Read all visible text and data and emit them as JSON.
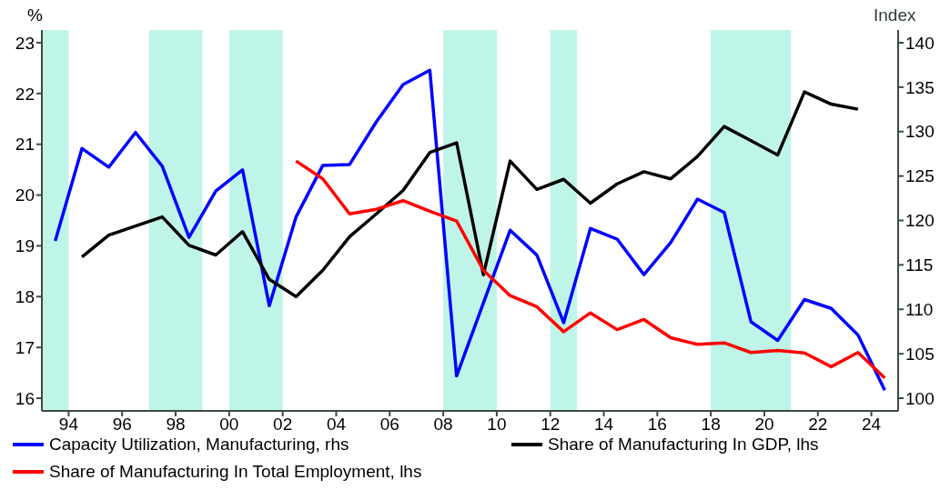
{
  "chart_data": {
    "type": "line",
    "ylabel": "%",
    "y2label": "Index",
    "xlim": [
      1993,
      2025
    ],
    "xticks": [
      {
        "value": 1994,
        "label": "94"
      },
      {
        "value": 1996,
        "label": "96"
      },
      {
        "value": 1998,
        "label": "98"
      },
      {
        "value": 2000,
        "label": "00"
      },
      {
        "value": 2002,
        "label": "02"
      },
      {
        "value": 2004,
        "label": "04"
      },
      {
        "value": 2006,
        "label": "06"
      },
      {
        "value": 2008,
        "label": "08"
      },
      {
        "value": 2010,
        "label": "10"
      },
      {
        "value": 2012,
        "label": "12"
      },
      {
        "value": 2014,
        "label": "14"
      },
      {
        "value": 2016,
        "label": "16"
      },
      {
        "value": 2018,
        "label": "18"
      },
      {
        "value": 2020,
        "label": "20"
      },
      {
        "value": 2022,
        "label": "22"
      },
      {
        "value": 2024,
        "label": "24"
      }
    ],
    "ylim": [
      15.75,
      23.25
    ],
    "yticks": [
      16,
      17,
      18,
      19,
      20,
      21,
      22,
      23
    ],
    "y2lim": [
      98.57,
      141.43
    ],
    "y2ticks": [
      100,
      105,
      110,
      115,
      120,
      125,
      130,
      135,
      140
    ],
    "bands": [
      {
        "axis": "x",
        "from": 1993,
        "to": 1994,
        "color": "#bff5e8"
      },
      {
        "axis": "x",
        "from": 1997,
        "to": 1999,
        "color": "#bff5e8"
      },
      {
        "axis": "x",
        "from": 2000,
        "to": 2002,
        "color": "#bff5e8"
      },
      {
        "axis": "x",
        "from": 2008,
        "to": 2010,
        "color": "#bff5e8"
      },
      {
        "axis": "x",
        "from": 2012,
        "to": 2013,
        "color": "#bff5e8"
      },
      {
        "axis": "x",
        "from": 2018,
        "to": 2021,
        "color": "#bff5e8"
      }
    ],
    "series": [
      {
        "name": "Capacity Utilization, Manufacturing, rhs",
        "color": "#0000ff",
        "axis": "y2",
        "x": [
          1993.5,
          1994.5,
          1995.5,
          1996.5,
          1997.5,
          1998.5,
          1999.5,
          2000.5,
          2001.5,
          2002.5,
          2003.5,
          2004.5,
          2005.5,
          2006.5,
          2007.5,
          2008.5,
          2009.5,
          2010.5,
          2011.5,
          2012.5,
          2013.5,
          2014.5,
          2015.5,
          2016.5,
          2017.5,
          2018.5,
          2019.5,
          2020.5,
          2021.5,
          2022.5,
          2023.5,
          2024.5
        ],
        "values": [
          117.7,
          128.1,
          126.0,
          129.9,
          126.1,
          118.1,
          123.3,
          125.7,
          110.4,
          120.4,
          126.2,
          126.3,
          131.1,
          135.3,
          136.9,
          102.5,
          110.7,
          118.9,
          116.1,
          108.5,
          119.1,
          117.9,
          113.9,
          117.5,
          122.4,
          120.9,
          108.6,
          106.5,
          111.1,
          110.1,
          107.1,
          100.9
        ]
      },
      {
        "name": "Share of Manufacturing In GDP, lhs",
        "color": "#000000",
        "axis": "y",
        "x": [
          1994.5,
          1995.5,
          1996.5,
          1997.5,
          1998.5,
          1999.5,
          2000.5,
          2001.5,
          2002.5,
          2003.5,
          2004.5,
          2005.5,
          2006.5,
          2007.5,
          2008.5,
          2009.5,
          2010.5,
          2011.5,
          2012.5,
          2013.5,
          2014.5,
          2015.5,
          2016.5,
          2017.5,
          2018.5,
          2019.5,
          2020.5,
          2021.5,
          2022.5,
          2023.5
        ],
        "values": [
          18.78,
          19.21,
          19.39,
          19.57,
          19.01,
          18.82,
          19.28,
          18.34,
          18.0,
          18.52,
          19.18,
          19.63,
          20.09,
          20.84,
          21.03,
          18.43,
          20.67,
          20.11,
          20.31,
          19.84,
          20.22,
          20.46,
          20.32,
          20.76,
          21.35,
          21.07,
          20.79,
          22.03,
          21.79,
          21.69
        ]
      },
      {
        "name": "Share of Manufacturing In Total Employment, lhs",
        "color": "#ff0000",
        "axis": "y",
        "x": [
          2002.5,
          2003.5,
          2004.5,
          2005.5,
          2006.5,
          2007.5,
          2008.5,
          2009.5,
          2010.5,
          2011.5,
          2012.5,
          2013.5,
          2014.5,
          2015.5,
          2016.5,
          2017.5,
          2018.5,
          2019.5,
          2020.5,
          2021.5,
          2022.5,
          2023.5,
          2024.5
        ],
        "values": [
          20.67,
          20.32,
          19.63,
          19.72,
          19.89,
          19.68,
          19.49,
          18.52,
          18.02,
          17.8,
          17.31,
          17.68,
          17.35,
          17.55,
          17.19,
          17.06,
          17.09,
          16.9,
          16.94,
          16.89,
          16.62,
          16.9,
          16.4
        ]
      }
    ],
    "legend": "bottom",
    "grid": false
  }
}
